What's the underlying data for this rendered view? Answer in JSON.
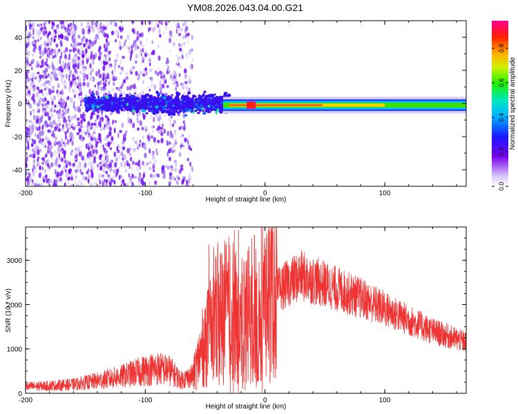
{
  "title": "YM08.2026.043.04.00.G21",
  "chart_data": [
    {
      "type": "heatmap",
      "xlabel": "Height of straight line (km)",
      "ylabel": "Frequency (Hz)",
      "xlim": [
        -200,
        168
      ],
      "ylim": [
        -50,
        50
      ],
      "xticks": [
        -200,
        -100,
        0,
        100
      ],
      "yticks": [
        -40,
        -20,
        0,
        20,
        40
      ],
      "colorbar": {
        "label": "Normalized spectral amplitude",
        "ticks": [
          0.0,
          0.2,
          0.4,
          0.6,
          0.8
        ],
        "range": [
          0,
          0.96
        ],
        "colormap": "rainbow (purple → blue → cyan → green → yellow → orange → red → magenta)"
      },
      "features": {
        "scatter_region_x": [
          -200,
          -65
        ],
        "carrier_band_x": [
          -35,
          168
        ],
        "carrier_frequency_hz": -1,
        "strong_carrier_x": [
          -30,
          100
        ]
      },
      "grid": false
    },
    {
      "type": "line",
      "xlabel": "Height of straight line (km)",
      "ylabel": "SNR (10 * v/v)",
      "xlim": [
        -200,
        168
      ],
      "ylim": [
        0,
        3750
      ],
      "xticks": [
        -200,
        -100,
        0,
        100
      ],
      "yticks": [
        0,
        1000,
        2000,
        3000
      ],
      "color": "#ee3333",
      "series": [
        {
          "x": [
            -200,
            -180,
            -160,
            -140,
            -120,
            -100,
            -90,
            -80,
            -70,
            -60,
            -50,
            -40,
            -30,
            -20,
            -10,
            0,
            10,
            20,
            30,
            40,
            60,
            80,
            100,
            120,
            140,
            168
          ],
          "values": [
            150,
            170,
            200,
            280,
            380,
            520,
            560,
            520,
            300,
            400,
            1200,
            1700,
            1900,
            1600,
            1900,
            2100,
            2300,
            2500,
            2650,
            2550,
            2350,
            2150,
            1900,
            1650,
            1400,
            1150
          ]
        }
      ],
      "grid": false
    }
  ]
}
